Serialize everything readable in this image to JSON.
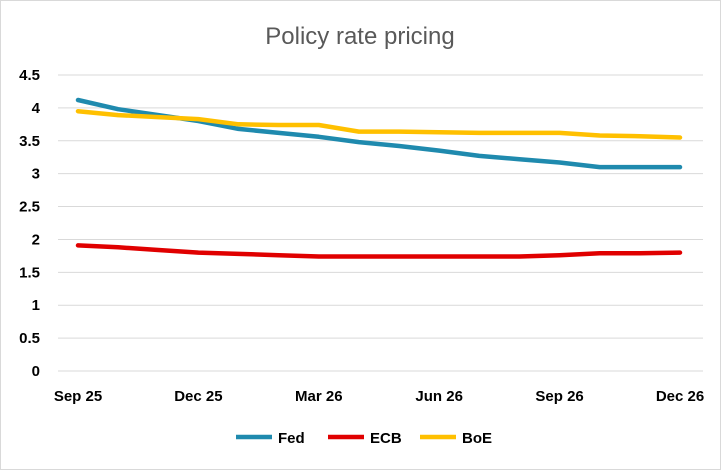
{
  "chart_data": {
    "type": "line",
    "title": "Policy rate pricing",
    "xlabel": "",
    "ylabel": "",
    "ylim": [
      0,
      4.5
    ],
    "yticks": [
      "0",
      "0.5",
      "1",
      "1.5",
      "2",
      "2.5",
      "3",
      "3.5",
      "4",
      "4.5"
    ],
    "x_tick_labels": [
      "Sep 25",
      "Dec 25",
      "Mar 26",
      "Jun 26",
      "Sep 26",
      "Dec 26"
    ],
    "categories": [
      "Sep 25",
      "Oct 25",
      "Nov 25",
      "Dec 25",
      "Jan 26",
      "Feb 26",
      "Mar 26",
      "Apr 26",
      "May 26",
      "Jun 26",
      "Jul 26",
      "Aug 26",
      "Sep 26",
      "Oct 26",
      "Nov 26",
      "Dec 26"
    ],
    "grid": "horizontal",
    "legend": "bottom",
    "series": [
      {
        "name": "Fed",
        "color": "#1f8aae",
        "values": [
          4.12,
          3.98,
          3.89,
          3.8,
          3.68,
          3.62,
          3.56,
          3.48,
          3.42,
          3.35,
          3.27,
          3.22,
          3.17,
          3.1,
          3.1,
          3.1
        ]
      },
      {
        "name": "ECB",
        "color": "#e00000",
        "values": [
          1.91,
          1.88,
          1.84,
          1.8,
          1.78,
          1.76,
          1.74,
          1.74,
          1.74,
          1.74,
          1.74,
          1.74,
          1.76,
          1.79,
          1.79,
          1.8
        ]
      },
      {
        "name": "BoE",
        "color": "#ffc000",
        "values": [
          3.95,
          3.89,
          3.86,
          3.83,
          3.75,
          3.74,
          3.74,
          3.64,
          3.64,
          3.63,
          3.62,
          3.62,
          3.62,
          3.58,
          3.57,
          3.55
        ]
      }
    ]
  }
}
